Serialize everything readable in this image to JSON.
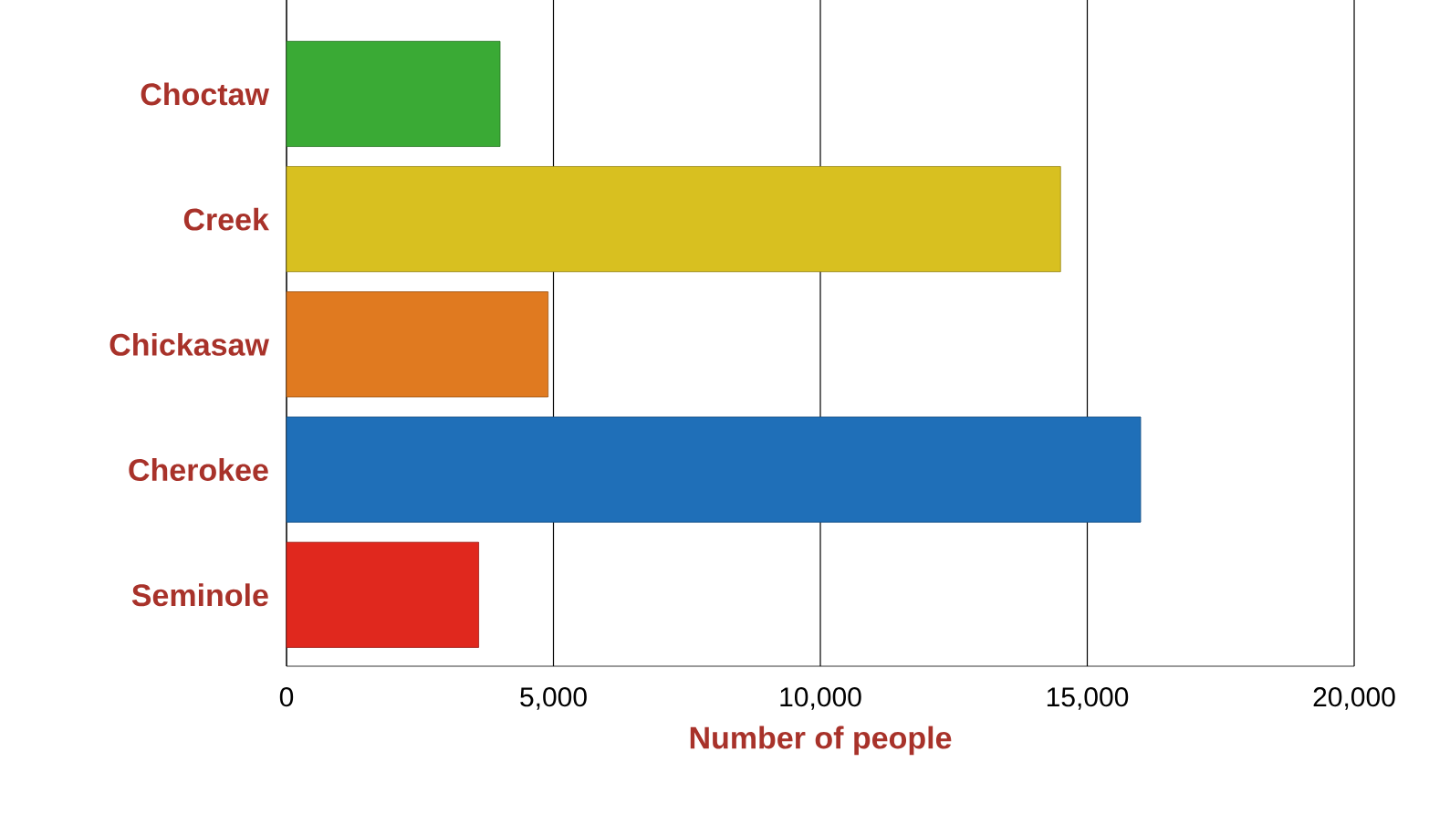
{
  "chart_data": {
    "type": "bar",
    "orientation": "horizontal",
    "xlabel": "Number of people",
    "categories": [
      "Choctaw",
      "Creek",
      "Chickasaw",
      "Cherokee",
      "Seminole"
    ],
    "values": [
      4000,
      14500,
      4900,
      16000,
      3600
    ],
    "colors": [
      "#3aaa35",
      "#d8c020",
      "#e07a20",
      "#1f6fb8",
      "#e0281e"
    ],
    "xlim": [
      0,
      20000
    ],
    "xticks": [
      {
        "value": 0,
        "label": "0"
      },
      {
        "value": 5000,
        "label": "5,000"
      },
      {
        "value": 10000,
        "label": "10,000"
      },
      {
        "value": 15000,
        "label": "15,000"
      },
      {
        "value": 20000,
        "label": "20,000"
      }
    ],
    "grid": "x"
  }
}
